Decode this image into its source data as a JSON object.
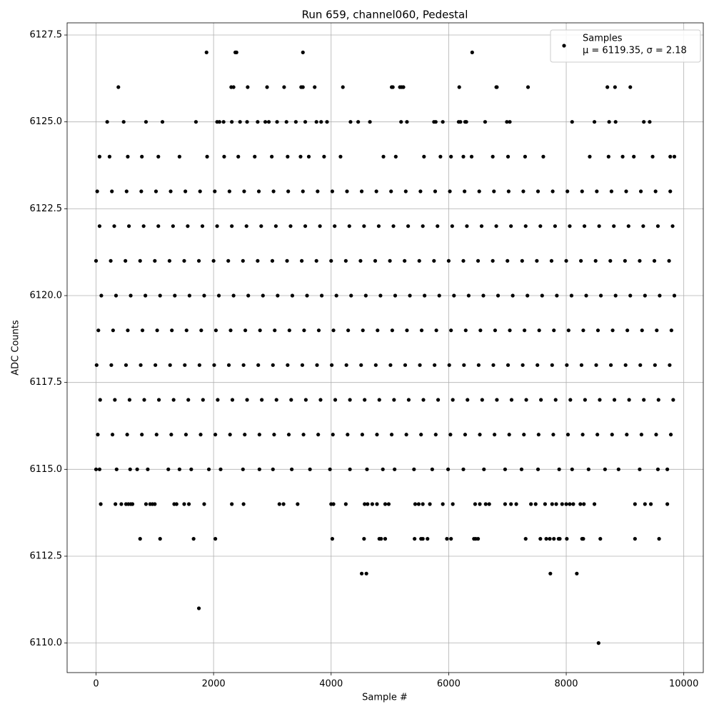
{
  "chart_data": {
    "type": "scatter",
    "title": "Run 659, channel060, Pedestal",
    "x_label": "Sample #",
    "y_label": "ADC Counts",
    "xlim": [
      -492,
      10332
    ],
    "ylim": [
      6109.15,
      6127.85
    ],
    "xticks": [
      0,
      2000,
      4000,
      6000,
      8000,
      10000
    ],
    "yticks": [
      {
        "value": 6110,
        "label": "6110.0"
      },
      {
        "value": 6112.5,
        "label": "6112.5"
      },
      {
        "value": 6115,
        "label": "6115.0"
      },
      {
        "value": 6117.5,
        "label": "6117.5"
      },
      {
        "value": 6120,
        "label": "6120.0"
      },
      {
        "value": 6122.5,
        "label": "6122.5"
      },
      {
        "value": 6125,
        "label": "6125.0"
      },
      {
        "value": 6127.5,
        "label": "6127.5"
      }
    ],
    "grid": true,
    "legend": "upper right",
    "annotation": "μ = 6119.35, σ = 2.18",
    "series": [
      {
        "name": "Samples",
        "color": "#000000",
        "x": [
          8550,
          1750,
          4520,
          4600,
          7730,
          8180,
          750,
          1090,
          1660,
          2030,
          4020,
          4560,
          4820,
          4850,
          4920,
          5420,
          5530,
          5560,
          5640,
          5970,
          6040,
          6430,
          6460,
          6500,
          7310,
          7560,
          7660,
          7720,
          7790,
          7870,
          7890,
          8010,
          8270,
          8290,
          8580,
          9170,
          9580,
          80,
          330,
          430,
          510,
          550,
          590,
          620,
          850,
          920,
          960,
          1000,
          1330,
          1370,
          1500,
          1580,
          1840,
          2310,
          2510,
          3120,
          3190,
          3430,
          4000,
          4040,
          4250,
          4570,
          4620,
          4700,
          4780,
          4920,
          4980,
          5430,
          5490,
          5560,
          5680,
          5900,
          6070,
          6450,
          6530,
          6630,
          6690,
          6960,
          7060,
          7150,
          7400,
          7480,
          7640,
          7760,
          7830,
          7930,
          8000,
          8060,
          8120,
          8240,
          8300,
          8480,
          9170,
          9340,
          9440,
          9720,
          0,
          60,
          350,
          580,
          700,
          880,
          1230,
          1420,
          1620,
          1920,
          2120,
          2500,
          2780,
          3010,
          3330,
          3640,
          3980,
          4320,
          4610,
          4880,
          5080,
          5410,
          5720,
          5990,
          6250,
          6600,
          6960,
          7240,
          7520,
          7880,
          8100,
          8380,
          8660,
          8890,
          9250,
          9560,
          9720,
          30,
          280,
          530,
          780,
          1030,
          1280,
          1530,
          1780,
          2030,
          2280,
          2530,
          2780,
          3030,
          3280,
          3530,
          3780,
          4030,
          4280,
          4530,
          4780,
          5030,
          5280,
          5530,
          5780,
          6030,
          6280,
          6530,
          6780,
          7030,
          7280,
          7530,
          7780,
          8030,
          8280,
          8530,
          8780,
          9030,
          9280,
          9530,
          9780,
          70,
          320,
          570,
          820,
          1070,
          1320,
          1570,
          1820,
          2070,
          2320,
          2570,
          2820,
          3070,
          3320,
          3570,
          3820,
          4070,
          4320,
          4570,
          4820,
          5070,
          5320,
          5570,
          5820,
          6070,
          6320,
          6570,
          6820,
          7070,
          7320,
          7570,
          7820,
          8070,
          8320,
          8570,
          8820,
          9070,
          9320,
          9570,
          9820,
          10,
          260,
          510,
          760,
          1010,
          1260,
          1510,
          1760,
          2010,
          2260,
          2510,
          2760,
          3010,
          3260,
          3510,
          3760,
          4010,
          4260,
          4510,
          4760,
          5010,
          5260,
          5510,
          5760,
          6010,
          6260,
          6510,
          6760,
          7010,
          7260,
          7510,
          7760,
          8010,
          8260,
          8510,
          8760,
          9010,
          9260,
          9510,
          9760,
          40,
          290,
          540,
          790,
          1040,
          1290,
          1540,
          1790,
          2040,
          2290,
          2540,
          2790,
          3040,
          3290,
          3540,
          3790,
          4040,
          4290,
          4540,
          4790,
          5040,
          5290,
          5540,
          5790,
          6040,
          6290,
          6540,
          6790,
          7040,
          7290,
          7540,
          7790,
          8040,
          8290,
          8540,
          8790,
          9040,
          9290,
          9540,
          9790,
          90,
          340,
          590,
          840,
          1090,
          1340,
          1590,
          1840,
          2090,
          2340,
          2590,
          2840,
          3090,
          3340,
          3590,
          3840,
          4090,
          4340,
          4590,
          4840,
          5090,
          5340,
          5590,
          5840,
          6090,
          6340,
          6590,
          6840,
          7090,
          7340,
          7590,
          7840,
          8090,
          8340,
          8590,
          8840,
          9090,
          9340,
          9590,
          9840,
          0,
          250,
          500,
          750,
          1000,
          1250,
          1500,
          1750,
          2000,
          2250,
          2500,
          2750,
          3000,
          3250,
          3500,
          3750,
          4000,
          4250,
          4500,
          4750,
          5000,
          5250,
          5500,
          5750,
          6000,
          6250,
          6500,
          6750,
          7000,
          7250,
          7500,
          7750,
          8000,
          8250,
          8500,
          8750,
          9000,
          9250,
          9500,
          9750,
          60,
          310,
          560,
          810,
          1060,
          1310,
          1560,
          1810,
          2060,
          2310,
          2560,
          2810,
          3060,
          3310,
          3560,
          3810,
          4060,
          4310,
          4560,
          4810,
          5060,
          5310,
          5560,
          5810,
          6060,
          6310,
          6560,
          6810,
          7060,
          7310,
          7560,
          7810,
          8060,
          8310,
          8560,
          8810,
          9060,
          9310,
          9560,
          9810,
          20,
          270,
          520,
          770,
          1020,
          1270,
          1520,
          1770,
          2020,
          2270,
          2520,
          2770,
          3020,
          3270,
          3520,
          3770,
          4020,
          4270,
          4520,
          4770,
          5020,
          5270,
          5520,
          5770,
          6020,
          6270,
          6520,
          6770,
          7020,
          7270,
          7520,
          7770,
          8020,
          8270,
          8520,
          8770,
          9020,
          9270,
          9520,
          9770,
          60,
          230,
          540,
          780,
          1060,
          1420,
          1890,
          2180,
          2420,
          2700,
          2990,
          3260,
          3480,
          3620,
          3880,
          4160,
          4890,
          5100,
          5580,
          5860,
          6040,
          6250,
          6390,
          6750,
          7010,
          7300,
          7610,
          8400,
          8720,
          8960,
          9150,
          9470,
          9770,
          9840,
          190,
          470,
          850,
          1130,
          1700,
          2060,
          2100,
          2170,
          2310,
          2450,
          2570,
          2750,
          2880,
          2940,
          3080,
          3240,
          3400,
          3560,
          3750,
          3830,
          3930,
          4330,
          4460,
          4660,
          5190,
          5290,
          5750,
          5780,
          5900,
          6170,
          6200,
          6280,
          6300,
          6620,
          6990,
          7040,
          8100,
          8480,
          8730,
          8840,
          9320,
          9420,
          380,
          2300,
          2340,
          2580,
          2910,
          3200,
          3490,
          3520,
          3720,
          4200,
          5030,
          5050,
          5170,
          5200,
          5230,
          6180,
          6810,
          6820,
          7350,
          8700,
          8830,
          9090,
          1880,
          2370,
          2390,
          3520,
          6400
        ],
        "values": [
          6110,
          6111,
          6112,
          6112,
          6112,
          6112,
          6113,
          6113,
          6113,
          6113,
          6113,
          6113,
          6113,
          6113,
          6113,
          6113,
          6113,
          6113,
          6113,
          6113,
          6113,
          6113,
          6113,
          6113,
          6113,
          6113,
          6113,
          6113,
          6113,
          6113,
          6113,
          6113,
          6113,
          6113,
          6113,
          6113,
          6113,
          6114,
          6114,
          6114,
          6114,
          6114,
          6114,
          6114,
          6114,
          6114,
          6114,
          6114,
          6114,
          6114,
          6114,
          6114,
          6114,
          6114,
          6114,
          6114,
          6114,
          6114,
          6114,
          6114,
          6114,
          6114,
          6114,
          6114,
          6114,
          6114,
          6114,
          6114,
          6114,
          6114,
          6114,
          6114,
          6114,
          6114,
          6114,
          6114,
          6114,
          6114,
          6114,
          6114,
          6114,
          6114,
          6114,
          6114,
          6114,
          6114,
          6114,
          6114,
          6114,
          6114,
          6114,
          6114,
          6114,
          6114,
          6114,
          6114,
          6115,
          6115,
          6115,
          6115,
          6115,
          6115,
          6115,
          6115,
          6115,
          6115,
          6115,
          6115,
          6115,
          6115,
          6115,
          6115,
          6115,
          6115,
          6115,
          6115,
          6115,
          6115,
          6115,
          6115,
          6115,
          6115,
          6115,
          6115,
          6115,
          6115,
          6115,
          6115,
          6115,
          6115,
          6115,
          6115,
          6115,
          6116,
          6116,
          6116,
          6116,
          6116,
          6116,
          6116,
          6116,
          6116,
          6116,
          6116,
          6116,
          6116,
          6116,
          6116,
          6116,
          6116,
          6116,
          6116,
          6116,
          6116,
          6116,
          6116,
          6116,
          6116,
          6116,
          6116,
          6116,
          6116,
          6116,
          6116,
          6116,
          6116,
          6116,
          6116,
          6116,
          6116,
          6116,
          6116,
          6116,
          6117,
          6117,
          6117,
          6117,
          6117,
          6117,
          6117,
          6117,
          6117,
          6117,
          6117,
          6117,
          6117,
          6117,
          6117,
          6117,
          6117,
          6117,
          6117,
          6117,
          6117,
          6117,
          6117,
          6117,
          6117,
          6117,
          6117,
          6117,
          6117,
          6117,
          6117,
          6117,
          6117,
          6117,
          6117,
          6117,
          6117,
          6117,
          6117,
          6117,
          6118,
          6118,
          6118,
          6118,
          6118,
          6118,
          6118,
          6118,
          6118,
          6118,
          6118,
          6118,
          6118,
          6118,
          6118,
          6118,
          6118,
          6118,
          6118,
          6118,
          6118,
          6118,
          6118,
          6118,
          6118,
          6118,
          6118,
          6118,
          6118,
          6118,
          6118,
          6118,
          6118,
          6118,
          6118,
          6118,
          6118,
          6118,
          6118,
          6118,
          6119,
          6119,
          6119,
          6119,
          6119,
          6119,
          6119,
          6119,
          6119,
          6119,
          6119,
          6119,
          6119,
          6119,
          6119,
          6119,
          6119,
          6119,
          6119,
          6119,
          6119,
          6119,
          6119,
          6119,
          6119,
          6119,
          6119,
          6119,
          6119,
          6119,
          6119,
          6119,
          6119,
          6119,
          6119,
          6119,
          6119,
          6119,
          6119,
          6119,
          6120,
          6120,
          6120,
          6120,
          6120,
          6120,
          6120,
          6120,
          6120,
          6120,
          6120,
          6120,
          6120,
          6120,
          6120,
          6120,
          6120,
          6120,
          6120,
          6120,
          6120,
          6120,
          6120,
          6120,
          6120,
          6120,
          6120,
          6120,
          6120,
          6120,
          6120,
          6120,
          6120,
          6120,
          6120,
          6120,
          6120,
          6120,
          6120,
          6120,
          6121,
          6121,
          6121,
          6121,
          6121,
          6121,
          6121,
          6121,
          6121,
          6121,
          6121,
          6121,
          6121,
          6121,
          6121,
          6121,
          6121,
          6121,
          6121,
          6121,
          6121,
          6121,
          6121,
          6121,
          6121,
          6121,
          6121,
          6121,
          6121,
          6121,
          6121,
          6121,
          6121,
          6121,
          6121,
          6121,
          6121,
          6121,
          6121,
          6121,
          6122,
          6122,
          6122,
          6122,
          6122,
          6122,
          6122,
          6122,
          6122,
          6122,
          6122,
          6122,
          6122,
          6122,
          6122,
          6122,
          6122,
          6122,
          6122,
          6122,
          6122,
          6122,
          6122,
          6122,
          6122,
          6122,
          6122,
          6122,
          6122,
          6122,
          6122,
          6122,
          6122,
          6122,
          6122,
          6122,
          6122,
          6122,
          6122,
          6122,
          6123,
          6123,
          6123,
          6123,
          6123,
          6123,
          6123,
          6123,
          6123,
          6123,
          6123,
          6123,
          6123,
          6123,
          6123,
          6123,
          6123,
          6123,
          6123,
          6123,
          6123,
          6123,
          6123,
          6123,
          6123,
          6123,
          6123,
          6123,
          6123,
          6123,
          6123,
          6123,
          6123,
          6123,
          6123,
          6123,
          6123,
          6123,
          6123,
          6123,
          6124,
          6124,
          6124,
          6124,
          6124,
          6124,
          6124,
          6124,
          6124,
          6124,
          6124,
          6124,
          6124,
          6124,
          6124,
          6124,
          6124,
          6124,
          6124,
          6124,
          6124,
          6124,
          6124,
          6124,
          6124,
          6124,
          6124,
          6124,
          6124,
          6124,
          6124,
          6124,
          6124,
          6124,
          6125,
          6125,
          6125,
          6125,
          6125,
          6125,
          6125,
          6125,
          6125,
          6125,
          6125,
          6125,
          6125,
          6125,
          6125,
          6125,
          6125,
          6125,
          6125,
          6125,
          6125,
          6125,
          6125,
          6125,
          6125,
          6125,
          6125,
          6125,
          6125,
          6125,
          6125,
          6125,
          6125,
          6125,
          6125,
          6125,
          6125,
          6125,
          6125,
          6125,
          6125,
          6125,
          6126,
          6126,
          6126,
          6126,
          6126,
          6126,
          6126,
          6126,
          6126,
          6126,
          6126,
          6126,
          6126,
          6126,
          6126,
          6126,
          6126,
          6126,
          6126,
          6126,
          6126,
          6126,
          6127,
          6127,
          6127,
          6127,
          6127
        ]
      }
    ]
  }
}
